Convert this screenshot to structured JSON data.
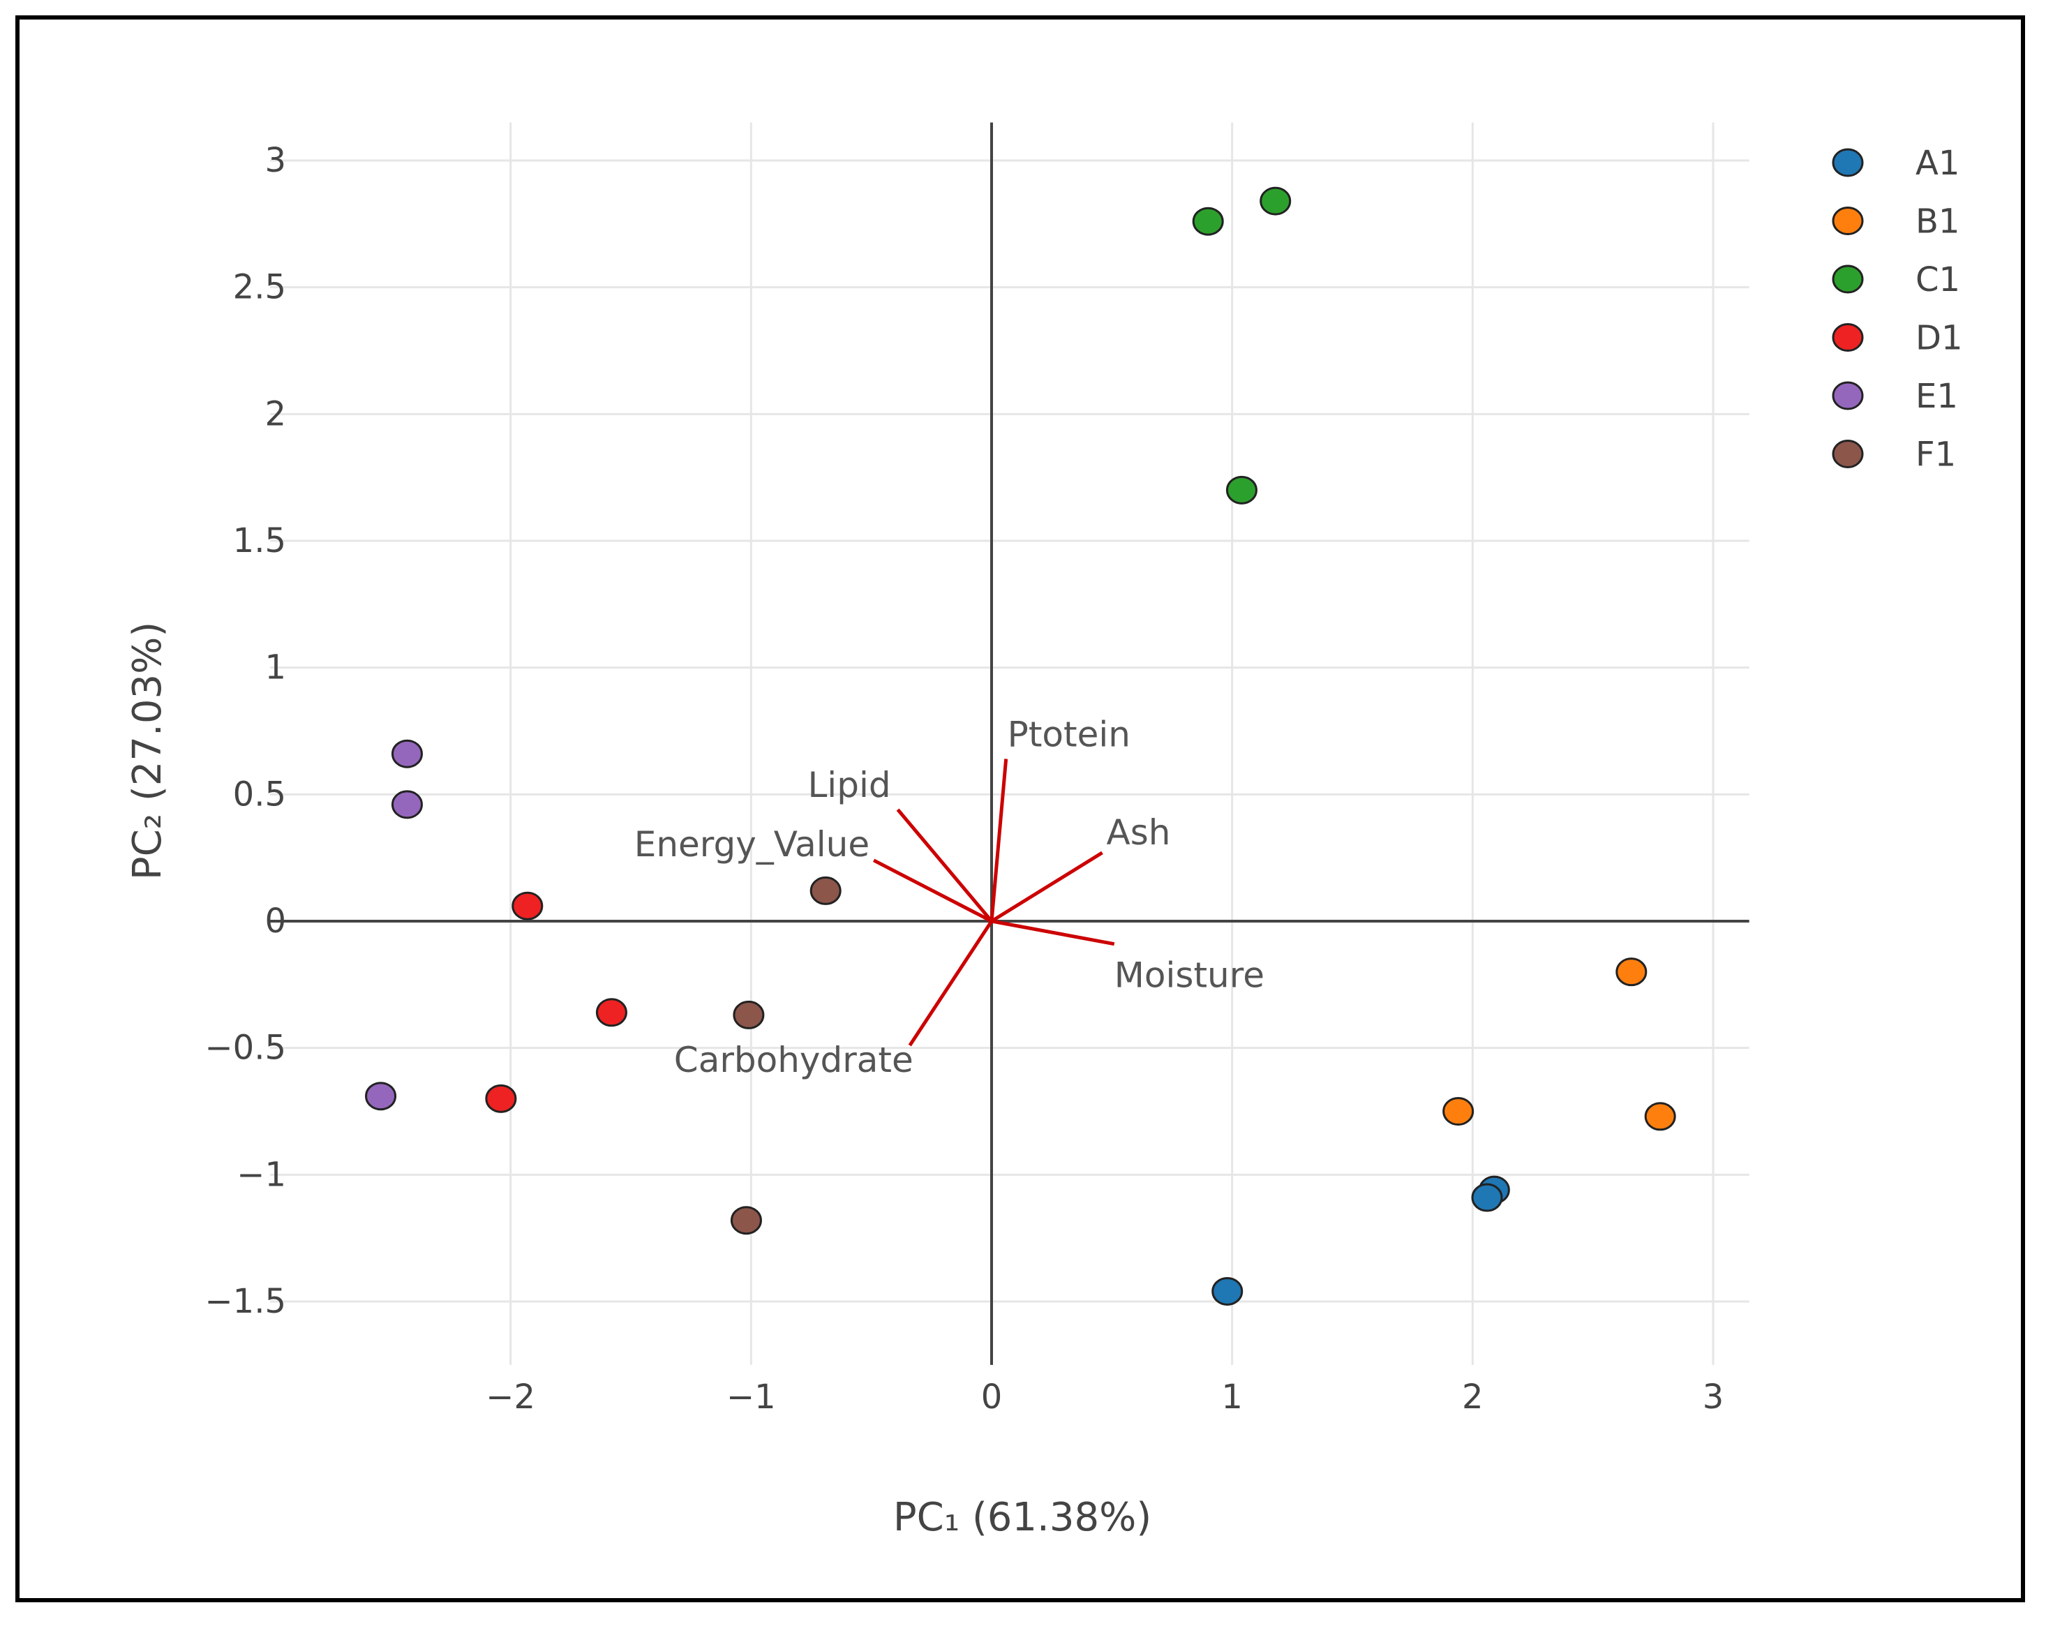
{
  "chart_data": {
    "type": "scatter",
    "subtype": "pca-biplot",
    "xlabel": "PC₁ (61.38%)",
    "ylabel": "PC₂ (27.03%)",
    "xlim": [
      -3.0,
      3.15
    ],
    "ylim": [
      -1.75,
      3.15
    ],
    "xticks": [
      -2,
      -1,
      0,
      1,
      2,
      3
    ],
    "yticks": [
      -1.5,
      -1,
      -0.5,
      0,
      0.5,
      1,
      1.5,
      2,
      2.5,
      3
    ],
    "xtick_labels": [
      "−2",
      "−1",
      "0",
      "1",
      "2",
      "3"
    ],
    "ytick_labels": [
      "−1.5",
      "−1",
      "−0.5",
      "0",
      "0.5",
      "1",
      "1.5",
      "2",
      "2.5",
      "3"
    ],
    "grid": true,
    "legend_position": "top-right",
    "series": [
      {
        "name": "A1",
        "color": "#1f77b4",
        "points": [
          [
            2.09,
            -1.06
          ],
          [
            2.06,
            -1.09
          ],
          [
            0.98,
            -1.46
          ]
        ]
      },
      {
        "name": "B1",
        "color": "#ff7f0e",
        "points": [
          [
            2.66,
            -0.2
          ],
          [
            1.94,
            -0.75
          ],
          [
            2.78,
            -0.77
          ]
        ]
      },
      {
        "name": "C1",
        "color": "#2ca02c",
        "points": [
          [
            1.18,
            2.84
          ],
          [
            0.9,
            2.76
          ],
          [
            1.04,
            1.7
          ]
        ]
      },
      {
        "name": "D1",
        "color": "#ee2222",
        "points": [
          [
            -1.93,
            0.06
          ],
          [
            -1.58,
            -0.36
          ],
          [
            -2.04,
            -0.7
          ]
        ]
      },
      {
        "name": "E1",
        "color": "#9467bd",
        "points": [
          [
            -2.43,
            0.66
          ],
          [
            -2.43,
            0.46
          ],
          [
            -2.54,
            -0.69
          ]
        ]
      },
      {
        "name": "F1",
        "color": "#8c564b",
        "points": [
          [
            -0.69,
            0.12
          ],
          [
            -1.01,
            -0.37
          ],
          [
            -1.02,
            -1.18
          ]
        ]
      }
    ],
    "loadings": [
      {
        "name": "Ptotein",
        "x": 0.06,
        "y": 0.64
      },
      {
        "name": "Lipid",
        "x": -0.39,
        "y": 0.44
      },
      {
        "name": "Energy_Value",
        "x": -0.49,
        "y": 0.24
      },
      {
        "name": "Ash",
        "x": 0.46,
        "y": 0.27
      },
      {
        "name": "Moisture",
        "x": 0.51,
        "y": -0.09
      },
      {
        "name": "Carbohydrate",
        "x": -0.34,
        "y": -0.49
      }
    ],
    "loading_color": "#cc0000"
  }
}
